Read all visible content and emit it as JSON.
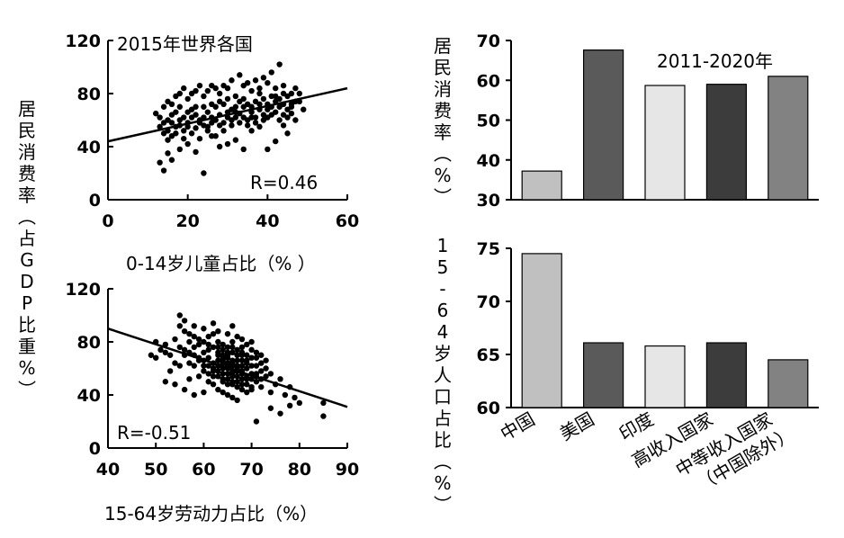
{
  "left_ylabel": "居民消费率（占GDP比重%）",
  "chart_data": [
    {
      "type": "scatter",
      "annotation_title": "2015年世界各国",
      "xlabel": "0-14岁儿童占比（% ）",
      "ylabel": "居民消费率（占GDP比重%）",
      "xlim": [
        0,
        60
      ],
      "ylim": [
        0,
        120
      ],
      "xticks": [
        0,
        20,
        40,
        60
      ],
      "yticks": [
        0,
        40,
        80,
        120
      ],
      "r_label": "R=0.46",
      "trendline": [
        [
          0,
          44
        ],
        [
          60,
          84
        ]
      ],
      "points": [
        [
          13,
          28
        ],
        [
          14,
          22
        ],
        [
          15,
          35
        ],
        [
          16,
          30
        ],
        [
          18,
          38
        ],
        [
          20,
          42
        ],
        [
          22,
          36
        ],
        [
          24,
          20
        ],
        [
          26,
          48
        ],
        [
          28,
          40
        ],
        [
          30,
          42
        ],
        [
          32,
          45
        ],
        [
          34,
          38
        ],
        [
          36,
          52
        ],
        [
          38,
          55
        ],
        [
          40,
          38
        ],
        [
          42,
          44
        ],
        [
          44,
          56
        ],
        [
          45,
          50
        ],
        [
          46,
          65
        ],
        [
          12,
          65
        ],
        [
          13,
          55
        ],
        [
          14,
          50
        ],
        [
          15,
          60
        ],
        [
          16,
          58
        ],
        [
          17,
          66
        ],
        [
          18,
          70
        ],
        [
          19,
          62
        ],
        [
          20,
          55
        ],
        [
          21,
          68
        ],
        [
          22,
          64
        ],
        [
          23,
          60
        ],
        [
          24,
          62
        ],
        [
          25,
          66
        ],
        [
          26,
          58
        ],
        [
          27,
          70
        ],
        [
          28,
          64
        ],
        [
          29,
          72
        ],
        [
          30,
          62
        ],
        [
          31,
          68
        ],
        [
          32,
          66
        ],
        [
          33,
          74
        ],
        [
          34,
          70
        ],
        [
          35,
          72
        ],
        [
          36,
          66
        ],
        [
          37,
          74
        ],
        [
          38,
          68
        ],
        [
          39,
          76
        ],
        [
          40,
          72
        ],
        [
          41,
          70
        ],
        [
          42,
          74
        ],
        [
          43,
          76
        ],
        [
          44,
          72
        ],
        [
          45,
          78
        ],
        [
          46,
          70
        ],
        [
          47,
          74
        ],
        [
          48,
          80
        ],
        [
          49,
          68
        ],
        [
          14,
          70
        ],
        [
          15,
          45
        ],
        [
          16,
          48
        ],
        [
          17,
          55
        ],
        [
          18,
          60
        ],
        [
          19,
          52
        ],
        [
          20,
          58
        ],
        [
          21,
          62
        ],
        [
          22,
          54
        ],
        [
          23,
          58
        ],
        [
          24,
          70
        ],
        [
          25,
          55
        ],
        [
          26,
          62
        ],
        [
          27,
          60
        ],
        [
          28,
          74
        ],
        [
          29,
          58
        ],
        [
          30,
          66
        ],
        [
          31,
          60
        ],
        [
          32,
          62
        ],
        [
          33,
          65
        ],
        [
          34,
          62
        ],
        [
          35,
          60
        ],
        [
          36,
          70
        ],
        [
          37,
          62
        ],
        [
          38,
          72
        ],
        [
          39,
          64
        ],
        [
          40,
          68
        ],
        [
          41,
          78
        ],
        [
          42,
          66
        ],
        [
          43,
          70
        ],
        [
          44,
          64
        ],
        [
          45,
          68
        ],
        [
          46,
          72
        ],
        [
          47,
          60
        ],
        [
          48,
          74
        ],
        [
          16,
          72
        ],
        [
          18,
          80
        ],
        [
          20,
          76
        ],
        [
          22,
          82
        ],
        [
          24,
          78
        ],
        [
          26,
          86
        ],
        [
          28,
          80
        ],
        [
          30,
          84
        ],
        [
          32,
          78
        ],
        [
          34,
          86
        ],
        [
          36,
          82
        ],
        [
          38,
          80
        ],
        [
          40,
          88
        ],
        [
          42,
          84
        ],
        [
          44,
          80
        ],
        [
          43,
          102
        ],
        [
          41,
          96
        ],
        [
          39,
          92
        ],
        [
          37,
          90
        ],
        [
          35,
          88
        ],
        [
          33,
          94
        ],
        [
          31,
          90
        ],
        [
          29,
          86
        ],
        [
          27,
          84
        ],
        [
          25,
          82
        ],
        [
          23,
          86
        ],
        [
          21,
          80
        ],
        [
          19,
          84
        ],
        [
          17,
          78
        ],
        [
          15,
          74
        ],
        [
          13,
          62
        ],
        [
          14,
          58
        ],
        [
          16,
          64
        ],
        [
          18,
          56
        ],
        [
          20,
          66
        ],
        [
          22,
          70
        ],
        [
          24,
          56
        ],
        [
          26,
          72
        ],
        [
          28,
          56
        ],
        [
          30,
          76
        ],
        [
          32,
          70
        ],
        [
          34,
          76
        ],
        [
          36,
          62
        ],
        [
          38,
          84
        ],
        [
          40,
          62
        ],
        [
          42,
          78
        ],
        [
          44,
          86
        ],
        [
          46,
          80
        ],
        [
          47,
          84
        ],
        [
          15,
          52
        ],
        [
          17,
          50
        ],
        [
          19,
          46
        ],
        [
          21,
          50
        ],
        [
          23,
          46
        ],
        [
          25,
          52
        ],
        [
          27,
          48
        ],
        [
          29,
          52
        ],
        [
          31,
          56
        ],
        [
          33,
          58
        ],
        [
          35,
          56
        ],
        [
          37,
          58
        ],
        [
          39,
          60
        ],
        [
          41,
          64
        ],
        [
          43,
          60
        ],
        [
          45,
          62
        ]
      ]
    },
    {
      "type": "scatter",
      "xlabel": "15-64岁劳动力占比（%）",
      "ylabel": "居民消费率（占GDP比重%）",
      "xlim": [
        40,
        90
      ],
      "ylim": [
        0,
        120
      ],
      "xticks": [
        40,
        50,
        60,
        70,
        80,
        90
      ],
      "yticks": [
        0,
        40,
        80,
        120
      ],
      "r_label": "R=-0.51",
      "trendline": [
        [
          40,
          90
        ],
        [
          90,
          31
        ]
      ],
      "points": [
        [
          49,
          70
        ],
        [
          50,
          80
        ],
        [
          51,
          74
        ],
        [
          52,
          78
        ],
        [
          53,
          70
        ],
        [
          54,
          82
        ],
        [
          55,
          76
        ],
        [
          56,
          88
        ],
        [
          57,
          72
        ],
        [
          58,
          84
        ],
        [
          59,
          68
        ],
        [
          60,
          80
        ],
        [
          61,
          74
        ],
        [
          62,
          86
        ],
        [
          63,
          70
        ],
        [
          64,
          78
        ],
        [
          65,
          72
        ],
        [
          66,
          80
        ],
        [
          67,
          70
        ],
        [
          68,
          76
        ],
        [
          69,
          66
        ],
        [
          70,
          74
        ],
        [
          71,
          68
        ],
        [
          72,
          64
        ],
        [
          73,
          60
        ],
        [
          74,
          56
        ],
        [
          75,
          48
        ],
        [
          76,
          52
        ],
        [
          77,
          40
        ],
        [
          78,
          46
        ],
        [
          79,
          38
        ],
        [
          80,
          34
        ],
        [
          85,
          34
        ],
        [
          85,
          24
        ],
        [
          71,
          20
        ],
        [
          74,
          30
        ],
        [
          76,
          26
        ],
        [
          78,
          32
        ],
        [
          50,
          68
        ],
        [
          52,
          72
        ],
        [
          54,
          64
        ],
        [
          56,
          70
        ],
        [
          58,
          62
        ],
        [
          60,
          66
        ],
        [
          62,
          60
        ],
        [
          64,
          64
        ],
        [
          66,
          58
        ],
        [
          68,
          62
        ],
        [
          70,
          56
        ],
        [
          72,
          52
        ],
        [
          60,
          58
        ],
        [
          61,
          62
        ],
        [
          62,
          54
        ],
        [
          63,
          58
        ],
        [
          64,
          52
        ],
        [
          65,
          56
        ],
        [
          66,
          50
        ],
        [
          67,
          54
        ],
        [
          68,
          48
        ],
        [
          69,
          52
        ],
        [
          65,
          60
        ],
        [
          66,
          62
        ],
        [
          67,
          58
        ],
        [
          64,
          60
        ],
        [
          65,
          64
        ],
        [
          66,
          56
        ],
        [
          67,
          62
        ],
        [
          68,
          58
        ],
        [
          63,
          62
        ],
        [
          64,
          56
        ],
        [
          65,
          52
        ],
        [
          66,
          48
        ],
        [
          67,
          46
        ],
        [
          68,
          44
        ],
        [
          69,
          42
        ],
        [
          70,
          46
        ],
        [
          71,
          50
        ],
        [
          62,
          48
        ],
        [
          63,
          44
        ],
        [
          64,
          42
        ],
        [
          65,
          40
        ],
        [
          66,
          38
        ],
        [
          67,
          36
        ],
        [
          60,
          42
        ],
        [
          58,
          40
        ],
        [
          56,
          44
        ],
        [
          54,
          48
        ],
        [
          52,
          50
        ],
        [
          57,
          52
        ],
        [
          59,
          54
        ],
        [
          61,
          50
        ],
        [
          55,
          100
        ],
        [
          56,
          96
        ],
        [
          58,
          92
        ],
        [
          60,
          90
        ],
        [
          62,
          94
        ],
        [
          63,
          88
        ],
        [
          65,
          86
        ],
        [
          66,
          92
        ],
        [
          67,
          84
        ],
        [
          68,
          82
        ],
        [
          69,
          78
        ],
        [
          70,
          80
        ],
        [
          71,
          72
        ],
        [
          72,
          70
        ],
        [
          73,
          66
        ],
        [
          55,
          92
        ],
        [
          57,
          86
        ],
        [
          59,
          82
        ],
        [
          61,
          84
        ],
        [
          63,
          80
        ],
        [
          65,
          76
        ],
        [
          67,
          74
        ],
        [
          69,
          70
        ],
        [
          71,
          62
        ],
        [
          53,
          58
        ],
        [
          55,
          62
        ],
        [
          57,
          64
        ],
        [
          59,
          66
        ],
        [
          61,
          68
        ],
        [
          63,
          72
        ],
        [
          65,
          68
        ],
        [
          67,
          66
        ],
        [
          69,
          60
        ],
        [
          71,
          56
        ],
        [
          64,
          66
        ],
        [
          65,
          70
        ],
        [
          66,
          66
        ],
        [
          67,
          70
        ],
        [
          68,
          66
        ],
        [
          69,
          64
        ],
        [
          70,
          62
        ],
        [
          64,
          70
        ],
        [
          66,
          72
        ],
        [
          68,
          70
        ],
        [
          70,
          68
        ],
        [
          72,
          58
        ],
        [
          73,
          54
        ],
        [
          62,
          64
        ],
        [
          63,
          66
        ],
        [
          64,
          68
        ],
        [
          65,
          62
        ],
        [
          66,
          64
        ],
        [
          67,
          60
        ],
        [
          68,
          56
        ],
        [
          69,
          54
        ],
        [
          70,
          52
        ],
        [
          71,
          54
        ],
        [
          60,
          62
        ],
        [
          61,
          56
        ],
        [
          62,
          58
        ],
        [
          63,
          54
        ],
        [
          64,
          50
        ],
        [
          65,
          48
        ],
        [
          66,
          54
        ],
        [
          67,
          50
        ],
        [
          68,
          52
        ],
        [
          69,
          48
        ],
        [
          70,
          44
        ],
        [
          72,
          46
        ],
        [
          74,
          42
        ],
        [
          58,
          76
        ],
        [
          60,
          72
        ],
        [
          62,
          76
        ],
        [
          64,
          74
        ],
        [
          66,
          76
        ],
        [
          68,
          72
        ],
        [
          57,
          80
        ],
        [
          59,
          78
        ],
        [
          61,
          78
        ],
        [
          63,
          76
        ],
        [
          56,
          74
        ],
        [
          58,
          70
        ]
      ]
    },
    {
      "type": "bar",
      "annotation_title": "2011-2020年",
      "ylabel": "居民消费率（%）",
      "categories": [
        "中国",
        "美国",
        "印度",
        "高收入国家",
        "中等收入国家（中国除外）"
      ],
      "values": [
        37.2,
        67.6,
        58.7,
        59.0,
        61.0
      ],
      "ylim": [
        30,
        70
      ],
      "yticks": [
        30,
        40,
        50,
        60,
        70
      ],
      "colors": [
        "#c0c0c0",
        "#5a5a5a",
        "#e6e6e6",
        "#3c3c3c",
        "#828282"
      ]
    },
    {
      "type": "bar",
      "ylabel": "15-64岁人口占比（%）",
      "categories": [
        "中国",
        "美国",
        "印度",
        "高收入国家",
        "中等收入国家（中国除外）"
      ],
      "values": [
        74.5,
        66.1,
        65.8,
        66.1,
        64.5
      ],
      "ylim": [
        60,
        75
      ],
      "yticks": [
        60,
        65,
        70,
        75
      ],
      "colors": [
        "#c0c0c0",
        "#5a5a5a",
        "#e6e6e6",
        "#3c3c3c",
        "#828282"
      ]
    }
  ],
  "category_labels": [
    "中国",
    "美国",
    "印度",
    "高收入国家",
    "中等收入国家",
    "（中国除外）"
  ]
}
